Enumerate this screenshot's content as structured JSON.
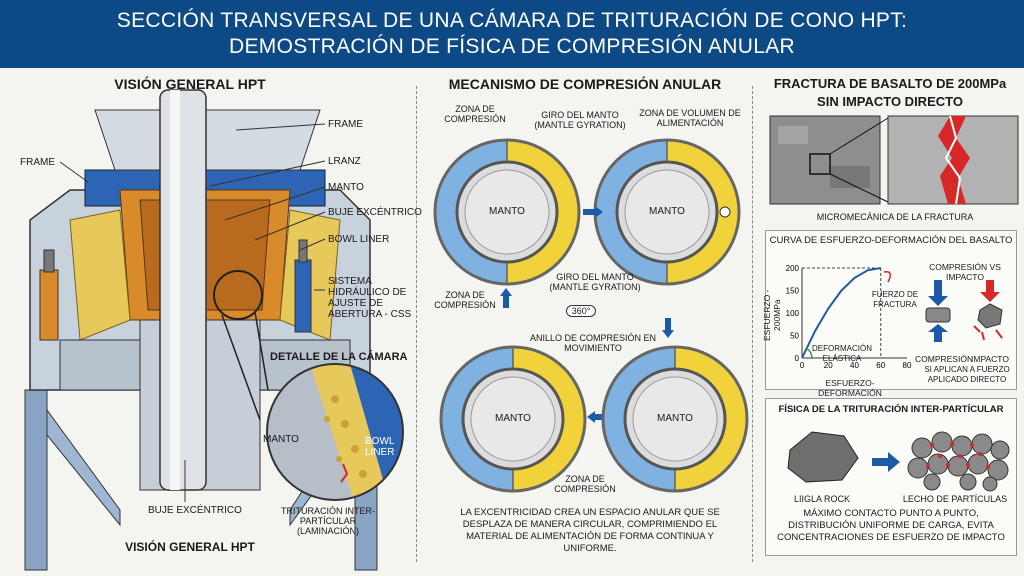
{
  "title": {
    "line1": "SECCIÓN TRANSVERSAL DE UNA CÁMARA DE TRITURACIÓN DE CONO HPT:",
    "line2": "DEMOSTRACIÓN DE FÍSICA DE COMPRESIÓN ANULAR"
  },
  "left": {
    "heading": "VISIÓN GENERAL HPT",
    "footer": "VISIÓN GENERAL HPT",
    "labels": {
      "frame_top": "FRAME",
      "frame_left": "FRAME",
      "lranz": "LRANZ",
      "manto": "MANTO",
      "buje": "BUJE EXCÉNTRICO",
      "bowl": "BOWL LINER",
      "hydraulic": "SISTEMA HIDRÁULICO DE AJUSTE DE ABERTURA - CSS",
      "buje_bottom": "BUJE EXCÉNTRICO"
    },
    "detail": {
      "heading": "DETALLE DE LA CÁMARA",
      "manto": "MANTO",
      "bowl": "BOWL LINER",
      "trit": "TRITURACIÓN INTER-PARTÍCULAR (LAMINACIÓN)"
    }
  },
  "middle": {
    "heading": "MECANISMO DE COMPRESIÓN ANULAR",
    "zona_compresion": "ZONA DE COMPRESIÓN",
    "giro": "GIRO DEL MANTO (MANTLE GYRATION)",
    "zona_volumen": "ZONA DE VOLUMEN DE ALIMENTACIÓN",
    "giro2": "GIRO DEL MANTO (MANTLE GYRATION)",
    "zona_compresion2": "ZONA DE COMPRESIÓN",
    "deg": "360°",
    "anillo": "ANILLO DE COMPRESIÓN EN MOVIMIENTO",
    "zona_compresion3": "ZONA DE COMPRESIÓN",
    "manto": "MANTO",
    "caption": "LA EXCENTRICIDAD CREA UN ESPACIO ANULAR QUE SE DESPLAZA DE MANERA CIRCULAR, COMPRIMIENDO EL MATERIAL DE ALIMENTACIÓN DE FORMA CONTINUA Y UNIFORME."
  },
  "right": {
    "heading_line1": "FRACTURA DE BASALTO DE 200MPa",
    "heading_line2": "SIN IMPACTO DIRECTO",
    "micro": "MICROMECÁNICA DE LA FRACTURA",
    "curve": {
      "title": "CURVA DE ESFUERZO-DEFORMACIÓN DEL BASALTO",
      "ylabel": "ESFUERZO - 200MPa",
      "xlabel": "ESFUERZO-DEFORMACIÓN",
      "yticks": [
        "200",
        "150",
        "100",
        "50",
        "0"
      ],
      "xticks": [
        "0",
        "20",
        "40",
        "60",
        "80"
      ],
      "fuerzo": "FUERZO DE FRACTURA",
      "elastica": "DEFORMACIÓN ELÁSTICA",
      "cvsi": "COMPRESIÓN VS IMPACTO",
      "compresion": "COMPRESIÓN",
      "impacto": "IMPACTO",
      "aplican": "SI APLICAN A FUERZO APLICADO DIRECTO"
    },
    "inter": {
      "title": "FÍSICA DE LA TRITURACIÓN INTER-PARTÍCULAR",
      "rock": "LIIGLA ROCK",
      "lecho": "LECHO DE PARTÍCULAS",
      "caption": "MÁXIMO CONTACTO PUNTO A PUNTO, DISTRIBUCIÓN UNIFORME DE CARGA, EVITA CONCENTRACIONES DE ESFUERZO DE IMPACTO"
    }
  },
  "chart_data": {
    "type": "line",
    "title": "CURVA DE ESFUERZO-DEFORMACIÓN DEL BASALTO",
    "xlabel": "ESFUERZO-DEFORMACIÓN",
    "ylabel": "ESFUERZO - 200MPa",
    "xlim": [
      0,
      80
    ],
    "ylim": [
      0,
      200
    ],
    "x": [
      0,
      10,
      20,
      30,
      40,
      50,
      60
    ],
    "y": [
      0,
      60,
      110,
      150,
      178,
      195,
      200
    ],
    "grid": false
  },
  "colors": {
    "banner": "#0d4a85",
    "blue_zone": "#7fb2e0",
    "yellow_zone": "#f2d23a",
    "orange": "#d98a2b",
    "red": "#d62828"
  }
}
